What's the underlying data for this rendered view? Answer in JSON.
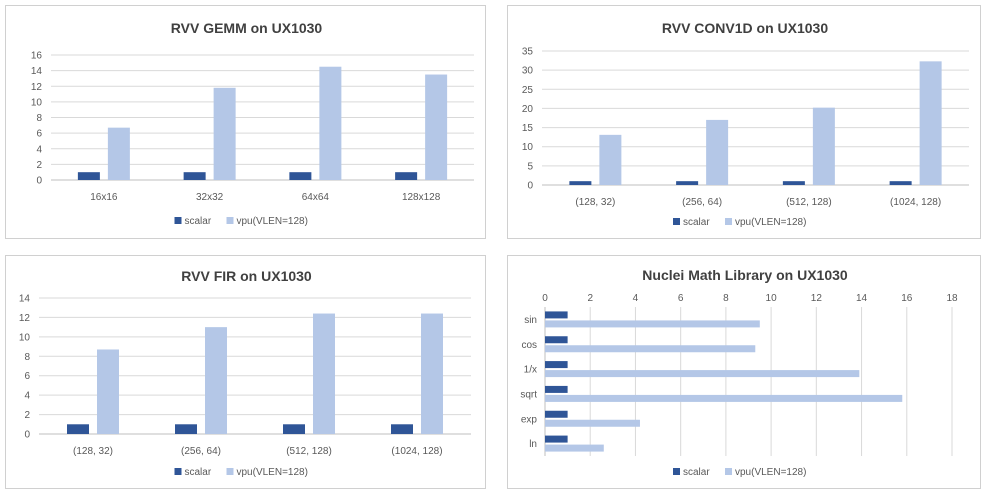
{
  "colors": {
    "scalar": "#2f5597",
    "vpu": "#b4c7e7",
    "grid": "#d9d9d9",
    "axis": "#bfbfbf"
  },
  "legend": {
    "scalar": "scalar",
    "vpu": "vpu(VLEN=128)"
  },
  "chart_data": [
    {
      "id": "gemm",
      "type": "bar",
      "title": "RVV GEMM  on UX1030",
      "categories": [
        "16x16",
        "32x32",
        "64x64",
        "128x128"
      ],
      "series": [
        {
          "name": "scalar",
          "values": [
            1,
            1,
            1,
            1
          ]
        },
        {
          "name": "vpu(VLEN=128)",
          "values": [
            6.7,
            11.8,
            14.5,
            13.5
          ]
        }
      ],
      "ylim": [
        0,
        16
      ],
      "ytick_step": 2,
      "grid": true,
      "legend_position": "bottom"
    },
    {
      "id": "conv1d",
      "type": "bar",
      "title": "RVV CONV1D on UX1030",
      "categories": [
        "(128, 32)",
        "(256, 64)",
        "(512, 128)",
        "(1024, 128)"
      ],
      "series": [
        {
          "name": "scalar",
          "values": [
            1,
            1,
            1,
            1
          ]
        },
        {
          "name": "vpu(VLEN=128)",
          "values": [
            13.1,
            17,
            20.2,
            32.3
          ]
        }
      ],
      "ylim": [
        0,
        35
      ],
      "ytick_step": 5,
      "grid": true,
      "legend_position": "bottom"
    },
    {
      "id": "fir",
      "type": "bar",
      "title": "RVV FIR on UX1030",
      "categories": [
        "(128, 32)",
        "(256, 64)",
        "(512, 128)",
        "(1024, 128)"
      ],
      "series": [
        {
          "name": "scalar",
          "values": [
            1,
            1,
            1,
            1
          ]
        },
        {
          "name": "vpu(VLEN=128)",
          "values": [
            8.7,
            11,
            12.4,
            12.4
          ]
        }
      ],
      "ylim": [
        0,
        14
      ],
      "ytick_step": 2,
      "grid": true,
      "legend_position": "bottom"
    },
    {
      "id": "math",
      "type": "bar",
      "orientation": "horizontal",
      "title": "Nuclei Math Library on UX1030",
      "categories": [
        "sin",
        "cos",
        "1/x",
        "sqrt",
        "exp",
        "ln"
      ],
      "series": [
        {
          "name": "scalar",
          "values": [
            1,
            1,
            1,
            1,
            1,
            1
          ]
        },
        {
          "name": "vpu(VLEN=128)",
          "values": [
            9.5,
            9.3,
            13.9,
            15.8,
            4.2,
            2.6
          ]
        }
      ],
      "xlim": [
        0,
        18
      ],
      "xtick_step": 2,
      "grid": true,
      "legend_position": "bottom"
    }
  ]
}
